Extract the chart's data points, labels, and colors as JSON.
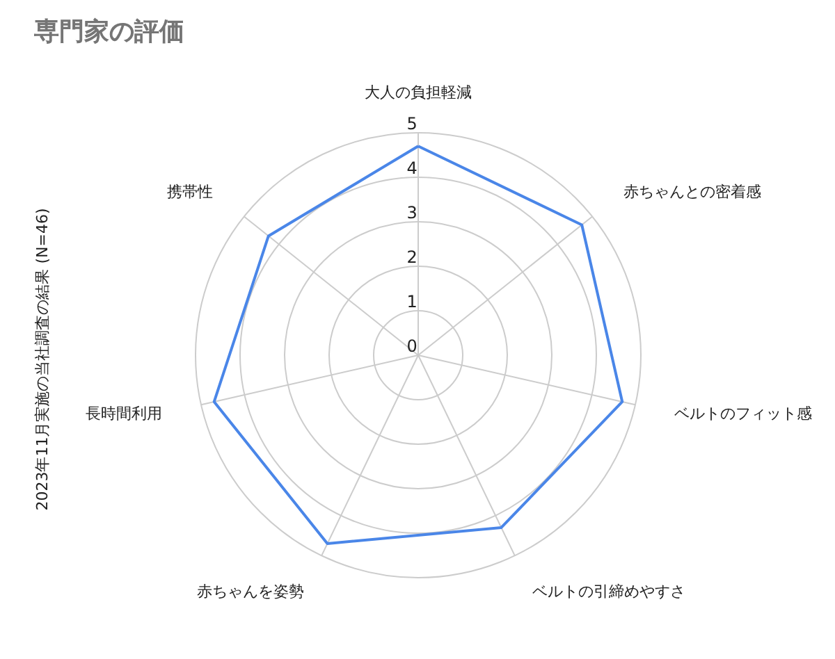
{
  "chart_data": {
    "type": "radar",
    "title": "専門家の評価",
    "ylabel": "2023年11月実施の当社調査の結果 (N=46)",
    "categories": [
      "大人の負担軽減",
      "赤ちゃんとの密着感",
      "ベルトのフィット感",
      "ベルトの引締めやすさ",
      "赤ちゃんを姿勢",
      "長時間利用",
      "携帯性"
    ],
    "series": [
      {
        "color": "#4a86e8",
        "values": [
          4.7,
          4.7,
          4.7,
          4.3,
          4.7,
          4.7,
          4.3
        ]
      }
    ],
    "ylim": [
      0,
      5
    ],
    "yticks": [
      0,
      1,
      2,
      3,
      4,
      5
    ],
    "grid": true
  }
}
